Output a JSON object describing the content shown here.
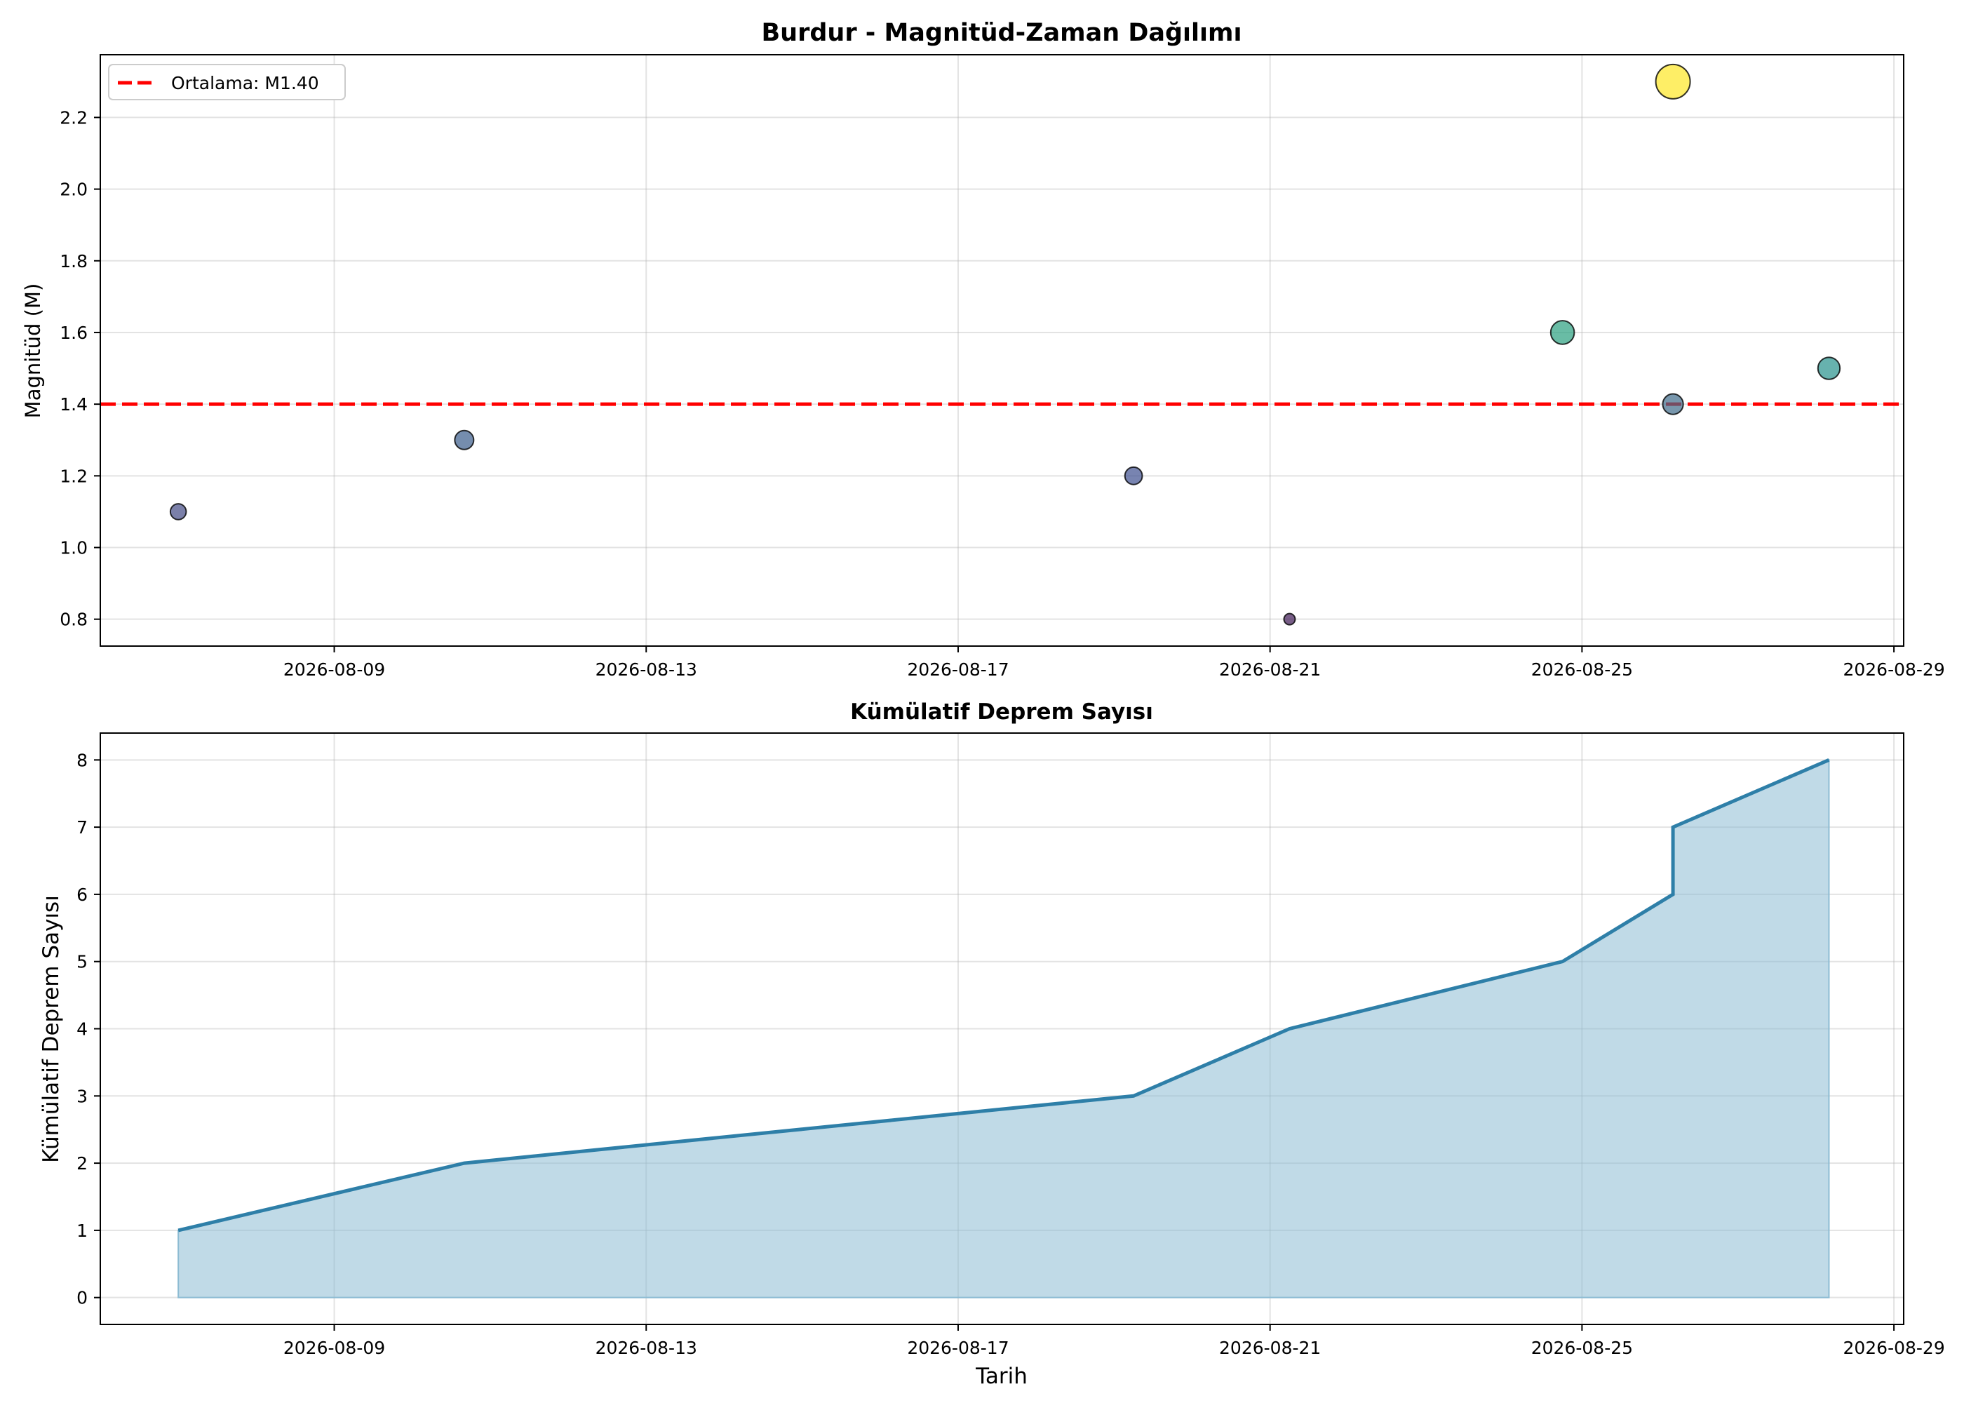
{
  "chart_data": [
    {
      "type": "scatter",
      "title": "Burdur - Magnitüd-Zaman Dağılımı",
      "xlabel": "",
      "ylabel": "Magnitüd (M)",
      "x_ticks": [
        "2026-08-09",
        "2026-08-13",
        "2026-08-17",
        "2026-08-21",
        "2026-08-25",
        "2026-08-29"
      ],
      "y_ticks": [
        "0.8",
        "1.0",
        "1.2",
        "1.4",
        "1.6",
        "1.8",
        "2.0",
        "2.2"
      ],
      "xlim": [
        "2026-08-06T00:00",
        "2026-08-29T03:00"
      ],
      "ylim": [
        0.725,
        2.375
      ],
      "grid": true,
      "legend_position": "top-left",
      "legend": {
        "label": "Ortalama: M1.40"
      },
      "mean_line": {
        "value": 1.4,
        "color": "#ff0000"
      },
      "points": [
        {
          "date": "2026-08-07T00:00",
          "magnitude": 1.1,
          "color": "#434a85"
        },
        {
          "date": "2026-08-10T16:00",
          "magnitude": 1.3,
          "color": "#3a5c8b"
        },
        {
          "date": "2026-08-19T06:00",
          "magnitude": 1.2,
          "color": "#3f5090"
        },
        {
          "date": "2026-08-21T06:00",
          "magnitude": 0.8,
          "color": "#3f1a55"
        },
        {
          "date": "2026-08-24T18:00",
          "magnitude": 1.6,
          "color": "#2aa07f"
        },
        {
          "date": "2026-08-26T04:00",
          "magnitude": 2.3,
          "color": "#fde725"
        },
        {
          "date": "2026-08-26T04:00",
          "magnitude": 1.4,
          "color": "#3f6b8a"
        },
        {
          "date": "2026-08-28T04:00",
          "magnitude": 1.5,
          "color": "#27918b"
        }
      ]
    },
    {
      "type": "area",
      "title": "Kümülatif Deprem Sayısı",
      "xlabel": "Tarih",
      "ylabel": "Kümülatif Deprem Sayısı",
      "x_ticks": [
        "2026-08-09",
        "2026-08-13",
        "2026-08-17",
        "2026-08-21",
        "2026-08-25",
        "2026-08-29"
      ],
      "y_ticks": [
        "0",
        "1",
        "2",
        "3",
        "4",
        "5",
        "6",
        "7",
        "8"
      ],
      "xlim": [
        "2026-08-06T00:00",
        "2026-08-29T03:00"
      ],
      "ylim": [
        -0.4,
        8.4
      ],
      "grid": true,
      "line_color": "#2e7fa8",
      "fill_color": "#8dbcd3",
      "x": [
        "2026-08-07T00:00",
        "2026-08-10T16:00",
        "2026-08-19T06:00",
        "2026-08-21T06:00",
        "2026-08-24T18:00",
        "2026-08-26T04:00",
        "2026-08-26T04:00",
        "2026-08-28T04:00"
      ],
      "y": [
        1,
        2,
        3,
        4,
        5,
        6,
        7,
        8
      ]
    }
  ]
}
